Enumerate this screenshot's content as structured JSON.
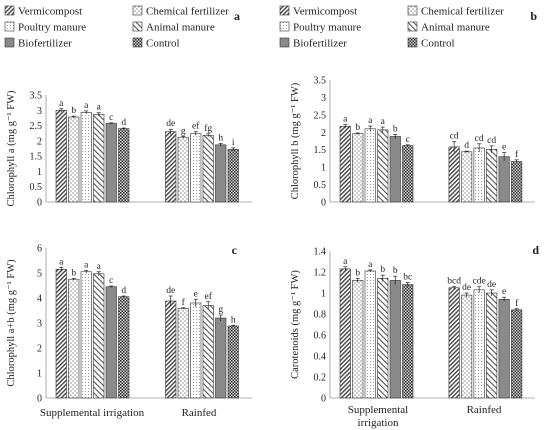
{
  "panel_letters": [
    "a",
    "b",
    "c",
    "d"
  ],
  "legend": [
    {
      "label": "Vermicompost",
      "pattern": "diag-dense"
    },
    {
      "label": "Chemical fertilizer",
      "pattern": "dots"
    },
    {
      "label": "Poultry manure",
      "pattern": "dots-fine"
    },
    {
      "label": "Animal manure",
      "pattern": "diag-light"
    },
    {
      "label": "Biofertilizer",
      "pattern": "solid-gray"
    },
    {
      "label": "Control",
      "pattern": "checker"
    }
  ],
  "chart_data": [
    {
      "type": "bar",
      "panel": "a",
      "ylabel": "Chlorophyll a (mg g⁻¹ FW)",
      "ylim": [
        0,
        3.5
      ],
      "yticks": [
        "0",
        "0.5",
        "1",
        "1.5",
        "2",
        "2.5",
        "3",
        "3.5"
      ],
      "categories": [
        "Supplemental irrigation",
        "Rainfed"
      ],
      "series": [
        {
          "name": "Vermicompost",
          "values": [
            3.0,
            2.3
          ],
          "errors": [
            0.05,
            0.08
          ],
          "letters": [
            "a",
            "de"
          ]
        },
        {
          "name": "Chemical fertilizer",
          "values": [
            2.78,
            2.12
          ],
          "errors": [
            0.03,
            0.03
          ],
          "letters": [
            "b",
            "g"
          ]
        },
        {
          "name": "Poultry manure",
          "values": [
            2.93,
            2.24
          ],
          "errors": [
            0.05,
            0.06
          ],
          "letters": [
            "a",
            "ef"
          ]
        },
        {
          "name": "Animal manure",
          "values": [
            2.87,
            2.18
          ],
          "errors": [
            0.05,
            0.05
          ],
          "letters": [
            "a",
            "fg"
          ]
        },
        {
          "name": "Biofertilizer",
          "values": [
            2.57,
            1.87
          ],
          "errors": [
            0.02,
            0.05
          ],
          "letters": [
            "c",
            "h"
          ]
        },
        {
          "name": "Control",
          "values": [
            2.4,
            1.72
          ],
          "errors": [
            0.02,
            0.05
          ],
          "letters": [
            "d",
            "i"
          ]
        }
      ]
    },
    {
      "type": "bar",
      "panel": "b",
      "ylabel": "Chlorophyll b (mg g⁻¹ FW)",
      "ylim": [
        0,
        3.5
      ],
      "yticks": [
        "0",
        "0.5",
        "1",
        "1.5",
        "2",
        "2.5",
        "3",
        "3.5"
      ],
      "categories": [
        "Supplemental irrigation",
        "Rainfed"
      ],
      "series": [
        {
          "name": "Vermicompost",
          "values": [
            2.17,
            1.58
          ],
          "errors": [
            0.05,
            0.15
          ],
          "letters": [
            "a",
            "cd"
          ]
        },
        {
          "name": "Chemical fertilizer",
          "values": [
            1.96,
            1.44
          ],
          "errors": [
            0.02,
            0.02
          ],
          "letters": [
            "b",
            "d"
          ]
        },
        {
          "name": "Poultry manure",
          "values": [
            2.1,
            1.55
          ],
          "errors": [
            0.08,
            0.12
          ],
          "letters": [
            "a",
            "cd"
          ]
        },
        {
          "name": "Animal manure",
          "values": [
            2.07,
            1.51
          ],
          "errors": [
            0.08,
            0.1
          ],
          "letters": [
            "a",
            "cd"
          ]
        },
        {
          "name": "Biofertilizer",
          "values": [
            1.88,
            1.3
          ],
          "errors": [
            0.06,
            0.12
          ],
          "letters": [
            "b",
            "e"
          ]
        },
        {
          "name": "Control",
          "values": [
            1.62,
            1.16
          ],
          "errors": [
            0.02,
            0.05
          ],
          "letters": [
            "c",
            "f"
          ]
        }
      ]
    },
    {
      "type": "bar",
      "panel": "c",
      "ylabel": "Chlorophyll a+b (mg g⁻¹ FW)",
      "ylim": [
        0,
        6
      ],
      "yticks": [
        "0",
        "1",
        "2",
        "3",
        "4",
        "5",
        "6"
      ],
      "categories": [
        "Supplemental irrigation",
        "Rainfed"
      ],
      "series": [
        {
          "name": "Vermicompost",
          "values": [
            5.15,
            3.88
          ],
          "errors": [
            0.08,
            0.2
          ],
          "letters": [
            "a",
            "de"
          ]
        },
        {
          "name": "Chemical fertilizer",
          "values": [
            4.75,
            3.58
          ],
          "errors": [
            0.03,
            0.03
          ],
          "letters": [
            "b",
            "f"
          ]
        },
        {
          "name": "Poultry manure",
          "values": [
            5.05,
            3.8
          ],
          "errors": [
            0.05,
            0.15
          ],
          "letters": [
            "a",
            "e"
          ]
        },
        {
          "name": "Animal manure",
          "values": [
            4.97,
            3.7
          ],
          "errors": [
            0.08,
            0.15
          ],
          "letters": [
            "a",
            "ef"
          ]
        },
        {
          "name": "Biofertilizer",
          "values": [
            4.45,
            3.2
          ],
          "errors": [
            0.03,
            0.12
          ],
          "letters": [
            "c",
            "g"
          ]
        },
        {
          "name": "Control",
          "values": [
            4.05,
            2.88
          ],
          "errors": [
            0.03,
            0.03
          ],
          "letters": [
            "d",
            "h"
          ]
        }
      ]
    },
    {
      "type": "bar",
      "panel": "d",
      "ylabel": "Carotenoids (mg g⁻¹ FW)",
      "ylim": [
        0,
        1.4
      ],
      "yticks": [
        "0",
        "0.2",
        "0.4",
        "0.6",
        "0.8",
        "1",
        "1.2",
        "1.4"
      ],
      "categories": [
        "Supplemental irrigation",
        "Rainfed"
      ],
      "series": [
        {
          "name": "Vermicompost",
          "values": [
            1.23,
            1.05
          ],
          "errors": [
            0.02,
            0.01
          ],
          "letters": [
            "a",
            "bcd"
          ]
        },
        {
          "name": "Chemical fertilizer",
          "values": [
            1.12,
            0.98
          ],
          "errors": [
            0.02,
            0.02
          ],
          "letters": [
            "b",
            "de"
          ]
        },
        {
          "name": "Poultry manure",
          "values": [
            1.21,
            1.03
          ],
          "errors": [
            0.01,
            0.03
          ],
          "letters": [
            "a",
            "cde"
          ]
        },
        {
          "name": "Animal manure",
          "values": [
            1.14,
            1.0
          ],
          "errors": [
            0.03,
            0.03
          ],
          "letters": [
            "b",
            "de"
          ]
        },
        {
          "name": "Biofertilizer",
          "values": [
            1.12,
            0.94
          ],
          "errors": [
            0.04,
            0.02
          ],
          "letters": [
            "b",
            "e"
          ]
        },
        {
          "name": "Control",
          "values": [
            1.08,
            0.84
          ],
          "errors": [
            0.02,
            0.01
          ],
          "letters": [
            "bc",
            "f"
          ]
        }
      ]
    }
  ],
  "xlabels": {
    "left_panels": [
      "Supplemental irrigation",
      "Rainfed"
    ],
    "right_panels": [
      [
        "Supplemental",
        "irrigation"
      ],
      [
        "Rainfed"
      ]
    ]
  }
}
